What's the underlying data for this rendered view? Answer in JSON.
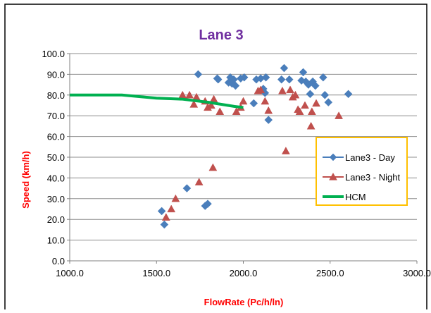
{
  "chart_data": {
    "type": "scatter",
    "title": "Lane 3",
    "xlabel": "FlowRate (Pc/h/ln)",
    "ylabel": "Speed (km/h)",
    "xlim": [
      1000,
      3000
    ],
    "ylim": [
      0,
      100
    ],
    "x_ticks": [
      "1000.0",
      "1500.0",
      "2000.0",
      "2500.0",
      "3000.0"
    ],
    "x_tick_values": [
      1000,
      1500,
      2000,
      2500,
      3000
    ],
    "y_ticks": [
      "0.0",
      "10.0",
      "20.0",
      "30.0",
      "40.0",
      "50.0",
      "60.0",
      "70.0",
      "80.0",
      "90.0",
      "100.0"
    ],
    "y_tick_values": [
      0,
      10,
      20,
      30,
      40,
      50,
      60,
      70,
      80,
      90,
      100
    ],
    "grid": "horizontal",
    "legend_position": "right",
    "series": [
      {
        "name": "Lane3 - Day",
        "marker": "diamond",
        "color": "#4A7EBB",
        "points": [
          [
            1530,
            24
          ],
          [
            1545,
            17.5
          ],
          [
            1675,
            35
          ],
          [
            1740,
            90
          ],
          [
            1780,
            26.5
          ],
          [
            1795,
            27.5
          ],
          [
            1850,
            88
          ],
          [
            1855,
            87.5
          ],
          [
            1915,
            86
          ],
          [
            1925,
            88.5
          ],
          [
            1935,
            85.5
          ],
          [
            1945,
            87.5
          ],
          [
            1955,
            84.5
          ],
          [
            1985,
            88
          ],
          [
            2005,
            88.5
          ],
          [
            2060,
            76
          ],
          [
            2075,
            87.5
          ],
          [
            2100,
            88
          ],
          [
            2115,
            83
          ],
          [
            2125,
            81
          ],
          [
            2130,
            88.5
          ],
          [
            2145,
            68
          ],
          [
            2220,
            87.5
          ],
          [
            2235,
            93
          ],
          [
            2265,
            87.5
          ],
          [
            2335,
            87
          ],
          [
            2345,
            91
          ],
          [
            2360,
            86.5
          ],
          [
            2375,
            85
          ],
          [
            2385,
            80.5
          ],
          [
            2400,
            86.5
          ],
          [
            2415,
            84.5
          ],
          [
            2460,
            88.5
          ],
          [
            2470,
            80
          ],
          [
            2490,
            76.5
          ],
          [
            2605,
            80.5
          ]
        ]
      },
      {
        "name": "Lane3 - Night",
        "marker": "triangle",
        "color": "#C0504D",
        "points": [
          [
            1555,
            21
          ],
          [
            1585,
            25
          ],
          [
            1610,
            30
          ],
          [
            1650,
            80
          ],
          [
            1690,
            80
          ],
          [
            1715,
            75.5
          ],
          [
            1730,
            79
          ],
          [
            1745,
            38
          ],
          [
            1780,
            77
          ],
          [
            1795,
            74
          ],
          [
            1815,
            75
          ],
          [
            1825,
            45
          ],
          [
            1830,
            78
          ],
          [
            1865,
            72
          ],
          [
            1960,
            72
          ],
          [
            1985,
            74
          ],
          [
            2000,
            77
          ],
          [
            2085,
            82
          ],
          [
            2100,
            82.5
          ],
          [
            2125,
            77
          ],
          [
            2145,
            72.5
          ],
          [
            2225,
            82
          ],
          [
            2245,
            53
          ],
          [
            2270,
            82.5
          ],
          [
            2285,
            79
          ],
          [
            2300,
            80
          ],
          [
            2315,
            73
          ],
          [
            2325,
            72
          ],
          [
            2355,
            75
          ],
          [
            2390,
            65
          ],
          [
            2395,
            72
          ],
          [
            2420,
            76
          ],
          [
            2550,
            70
          ]
        ]
      },
      {
        "name": "HCM",
        "marker": "line",
        "color": "#00B050",
        "points": [
          [
            1000,
            80
          ],
          [
            1300,
            80
          ],
          [
            1500,
            78.5
          ],
          [
            1650,
            78
          ],
          [
            1800,
            76.5
          ],
          [
            1950,
            74.5
          ],
          [
            2000,
            74
          ]
        ]
      }
    ]
  }
}
